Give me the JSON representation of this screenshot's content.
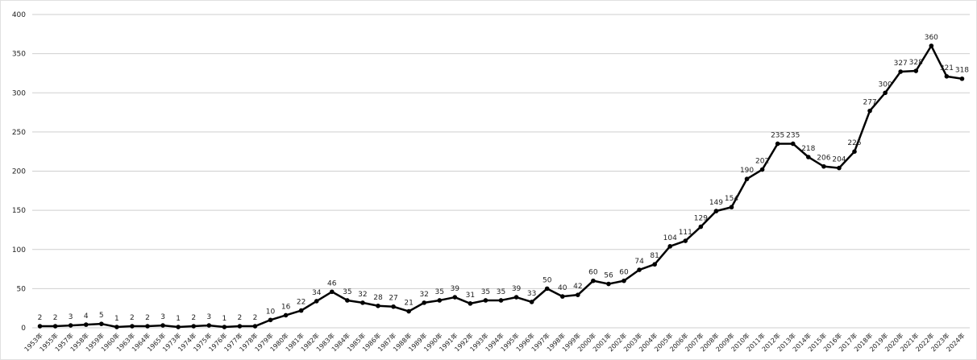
{
  "chart_data": {
    "type": "line",
    "categories": [
      "1953年",
      "1955年",
      "1957年",
      "1958年",
      "1959年",
      "1960年",
      "1963年",
      "1964年",
      "1965年",
      "1973年",
      "1974年",
      "1975年",
      "1976年",
      "1977年",
      "1978年",
      "1979年",
      "1980年",
      "1981年",
      "1982年",
      "1983年",
      "1984年",
      "1985年",
      "1986年",
      "1987年",
      "1988年",
      "1989年",
      "1990年",
      "1991年",
      "1992年",
      "1993年",
      "1994年",
      "1995年",
      "1996年",
      "1997年",
      "1998年",
      "1999年",
      "2000年",
      "2001年",
      "2002年",
      "2003年",
      "2004年",
      "2005年",
      "2006年",
      "2007年",
      "2008年",
      "2009年",
      "2010年",
      "2011年",
      "2012年",
      "2013年",
      "2014年",
      "2015年",
      "2016年",
      "2017年",
      "2018年",
      "2019年",
      "2020年",
      "2021年",
      "2022年",
      "2023年",
      "2024年"
    ],
    "values": [
      2,
      2,
      3,
      4,
      5,
      1,
      2,
      2,
      3,
      1,
      2,
      3,
      1,
      2,
      2,
      10,
      16,
      22,
      34,
      46,
      35,
      32,
      28,
      27,
      21,
      32,
      35,
      39,
      31,
      35,
      35,
      39,
      33,
      50,
      40,
      42,
      60,
      56,
      60,
      74,
      81,
      104,
      111,
      129,
      149,
      154,
      190,
      202,
      235,
      235,
      218,
      206,
      204,
      225,
      277,
      300,
      327,
      328,
      360,
      321,
      318
    ],
    "color": "#000000",
    "ylim": [
      0,
      400
    ],
    "yticks": [
      0,
      50,
      100,
      150,
      200,
      250,
      300,
      350,
      400
    ],
    "grid": true
  }
}
